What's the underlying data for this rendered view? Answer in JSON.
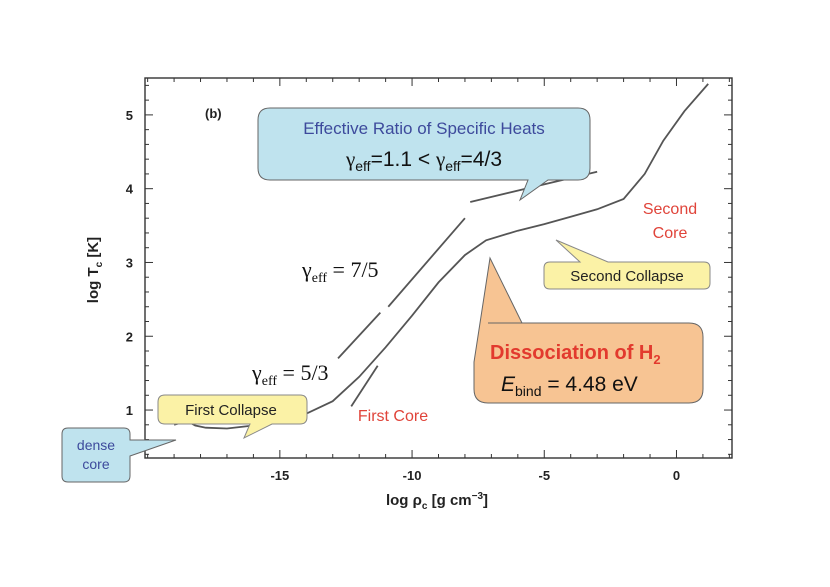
{
  "chart_data": {
    "type": "line",
    "panel_label": "(b)",
    "xlabel": {
      "main": "log ρ",
      "sub": "c",
      "unit_pre": " [g cm",
      "unit_sup": "−3",
      "unit_post": "]"
    },
    "ylabel": {
      "main": "log T",
      "sub": "c",
      "unit": " [K]"
    },
    "xlim": [
      -20.1,
      2.1
    ],
    "ylim": [
      0.35,
      5.5
    ],
    "x_ticks": [
      -15,
      -10,
      -5,
      0
    ],
    "x_tick_labels": [
      "-15",
      "-10",
      "-5",
      "0"
    ],
    "y_ticks": [
      1,
      2,
      3,
      4,
      5
    ],
    "y_tick_labels": [
      "1",
      "2",
      "3",
      "4",
      "5"
    ],
    "series": [
      {
        "id": "evolution",
        "color": "#555555",
        "points": [
          [
            -19.0,
            0.8
          ],
          [
            -18.6,
            0.84
          ],
          [
            -18.4,
            0.83
          ],
          [
            -18.2,
            0.79
          ],
          [
            -17.8,
            0.76
          ],
          [
            -17.0,
            0.75
          ],
          [
            -16.0,
            0.79
          ],
          [
            -15.0,
            0.85
          ],
          [
            -14.0,
            0.95
          ],
          [
            -13.0,
            1.12
          ],
          [
            -12.0,
            1.45
          ],
          [
            -11.0,
            1.85
          ],
          [
            -10.0,
            2.28
          ],
          [
            -9.0,
            2.73
          ],
          [
            -8.0,
            3.1
          ],
          [
            -7.2,
            3.3
          ],
          [
            -6.0,
            3.43
          ],
          [
            -5.0,
            3.52
          ],
          [
            -4.0,
            3.62
          ],
          [
            -3.0,
            3.72
          ],
          [
            -2.0,
            3.86
          ],
          [
            -1.2,
            4.2
          ],
          [
            -0.5,
            4.65
          ],
          [
            0.3,
            5.05
          ],
          [
            1.2,
            5.42
          ]
        ]
      }
    ],
    "reference_lines": [
      {
        "id": "gamma-1.1",
        "points": [
          [
            -7.8,
            3.82
          ],
          [
            -3.0,
            4.23
          ]
        ]
      },
      {
        "id": "gamma-7-5-lower",
        "points": [
          [
            -12.8,
            1.7
          ],
          [
            -11.2,
            2.32
          ]
        ]
      },
      {
        "id": "gamma-7-5-upper",
        "points": [
          [
            -10.9,
            2.4
          ],
          [
            -8.0,
            3.6
          ]
        ]
      },
      {
        "id": "gamma-5-3",
        "points": [
          [
            -12.3,
            1.05
          ],
          [
            -11.3,
            1.6
          ]
        ]
      }
    ],
    "gamma_labels": {
      "g75_symbol": "γ",
      "g75_sub": "eff",
      "g75_value": " = 7/5",
      "g53_symbol": "γ",
      "g53_sub": "eff",
      "g53_value": " = 5/3"
    },
    "callouts": {
      "effective": {
        "title": "Effective Ratio of Specific Heats",
        "eq_gamma_a": "γ",
        "eq_sub_a": "eff",
        "eq_mid": "=1.1 < ",
        "eq_gamma_b": "γ",
        "eq_sub_b": "eff",
        "eq_end": "=4/3",
        "fill": "#bfe3ee",
        "title_color": "#3d4a9c"
      },
      "dissociation": {
        "title_main": "Dissociation of H",
        "title_sub": "2",
        "ebind_italic": "E",
        "ebind_sub": "bind",
        "ebind_value": " = 4.48 eV",
        "fill": "#f7c493",
        "title_color": "#e23a2e"
      },
      "second_collapse": {
        "text": "Second Collapse",
        "fill": "#fbf2a6"
      },
      "first_collapse": {
        "text": "First Collapse",
        "fill": "#fbf2a6"
      },
      "dense_core": {
        "line1": "dense",
        "line2": "core",
        "fill": "#bfe3ee",
        "text_color": "#3d4a9c"
      }
    },
    "annotations": {
      "second_core_line1": "Second",
      "second_core_line2": "Core",
      "first_core": "First Core",
      "core_label_color": "#e0443a"
    }
  }
}
